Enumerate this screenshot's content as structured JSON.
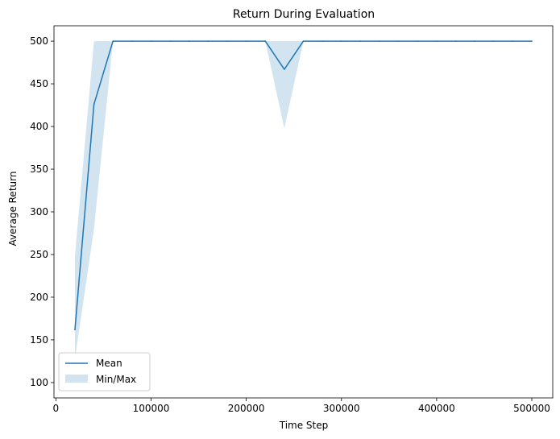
{
  "chart_data": {
    "type": "line",
    "title": "Return During Evaluation",
    "xlabel": "Time Step",
    "ylabel": "Average Return",
    "xlim": [
      -2000,
      522000
    ],
    "ylim": [
      82,
      518
    ],
    "xticks": [
      0,
      100000,
      200000,
      300000,
      400000,
      500000
    ],
    "yticks": [
      100,
      150,
      200,
      250,
      300,
      350,
      400,
      450,
      500
    ],
    "grid": false,
    "legend_position": "lower-left",
    "colors": {
      "mean": "#1f77b4",
      "band": "#1f77b4"
    },
    "band_opacity": 0.2,
    "series": [
      {
        "name": "Mean",
        "kind": "line",
        "x": [
          20000,
          40000,
          60000,
          80000,
          100000,
          120000,
          140000,
          160000,
          180000,
          200000,
          220000,
          240000,
          260000,
          280000,
          300000,
          320000,
          340000,
          360000,
          380000,
          400000,
          420000,
          440000,
          460000,
          480000,
          500000
        ],
        "y": [
          162,
          426,
          500,
          500,
          500,
          500,
          500,
          500,
          500,
          500,
          500,
          467,
          500,
          500,
          500,
          500,
          500,
          500,
          500,
          500,
          500,
          500,
          500,
          500,
          500
        ]
      },
      {
        "name": "Min/Max",
        "kind": "band",
        "x": [
          20000,
          40000,
          60000,
          80000,
          100000,
          120000,
          140000,
          160000,
          180000,
          200000,
          220000,
          240000,
          260000,
          280000,
          300000,
          320000,
          340000,
          360000,
          380000,
          400000,
          420000,
          440000,
          460000,
          480000,
          500000
        ],
        "ymin": [
          128,
          280,
          500,
          500,
          500,
          500,
          500,
          500,
          500,
          500,
          500,
          398,
          500,
          500,
          500,
          500,
          500,
          500,
          500,
          500,
          500,
          500,
          500,
          500,
          500
        ],
        "ymax": [
          248,
          500,
          500,
          500,
          500,
          500,
          500,
          500,
          500,
          500,
          500,
          500,
          500,
          500,
          500,
          500,
          500,
          500,
          500,
          500,
          500,
          500,
          500,
          500,
          500
        ]
      }
    ]
  }
}
